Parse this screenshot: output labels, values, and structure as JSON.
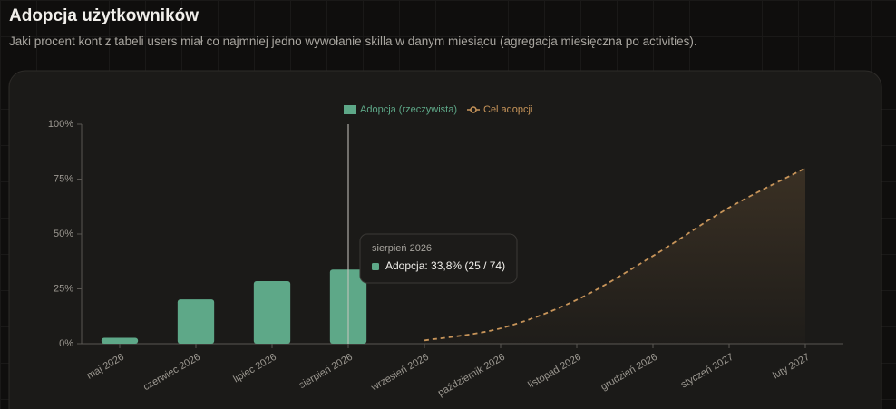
{
  "header": {
    "title": "Adopcja użytkowników",
    "subtitle": "Jaki procent kont z tabeli users miał co najmniej jedno wywołanie skilla w danym miesiącu (agregacja miesięczna po activities)."
  },
  "chart_data": {
    "type": "bar",
    "categories": [
      "maj 2026",
      "czerwiec 2026",
      "lipiec 2026",
      "sierpień 2026",
      "wrzesień 2026",
      "październik 2026",
      "listopad 2026",
      "grudzień 2026",
      "styczeń 2027",
      "luty 2027"
    ],
    "series": [
      {
        "name": "Adopcja (rzeczywista)",
        "type": "bar",
        "color": "#5ea888",
        "values": [
          2.7,
          20.2,
          28.5,
          33.8,
          null,
          null,
          null,
          null,
          null,
          null
        ]
      },
      {
        "name": "Cel adopcji",
        "type": "line",
        "color": "#c8955a",
        "dashed": true,
        "values": [
          null,
          null,
          null,
          null,
          1.5,
          7,
          20,
          40,
          62,
          80
        ]
      }
    ],
    "ylim": [
      0,
      100
    ],
    "yticks": [
      {
        "value": 0,
        "label": "0%"
      },
      {
        "value": 25,
        "label": "25%"
      },
      {
        "value": 50,
        "label": "50%"
      },
      {
        "value": 75,
        "label": "75%"
      },
      {
        "value": 100,
        "label": "100%"
      }
    ],
    "legend": "top",
    "tooltip": {
      "category": 3,
      "text": "Adopcja: 33,8% (25 / 74)"
    }
  }
}
